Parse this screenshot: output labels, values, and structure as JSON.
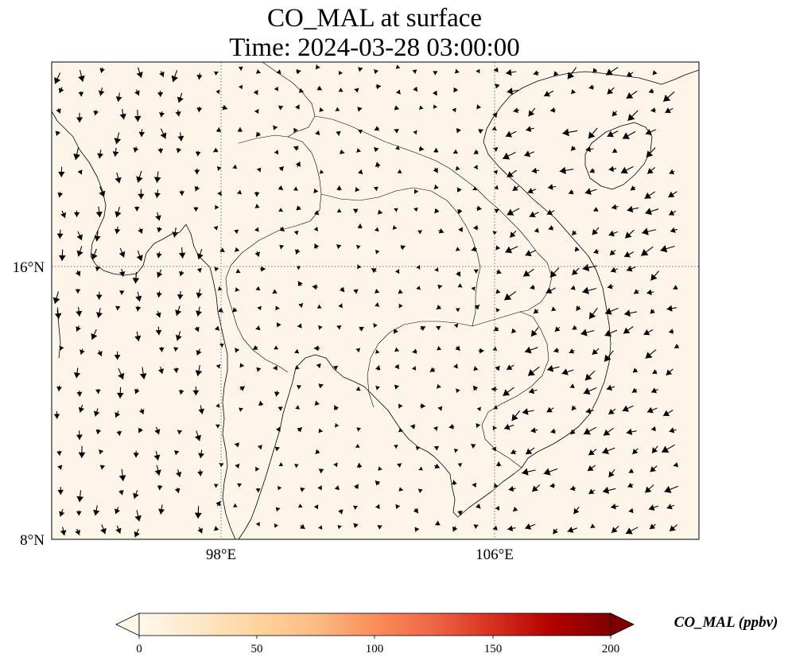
{
  "title": {
    "line1": "CO_MAL at surface",
    "line2": "Time: 2024-03-28 03:00:00"
  },
  "map": {
    "background_color": "#fdf5ea",
    "longitude_ticks": [
      "98°E",
      "106°E"
    ],
    "latitude_ticks": [
      "16°N",
      "8°N"
    ],
    "gridlines": "dotted",
    "features": [
      "coastlines",
      "country-borders",
      "wind-vectors"
    ]
  },
  "colorbar": {
    "label": "CO_MAL (ppbv)",
    "ticks": [
      "0",
      "50",
      "100",
      "150",
      "200"
    ],
    "min": 0,
    "max": 200,
    "extend": "both",
    "colormap": "OrRd",
    "colors": [
      "#fff7ec",
      "#fee8c8",
      "#fdd49e",
      "#fdbb84",
      "#fc8d59",
      "#ef6548",
      "#d7301f",
      "#b30000",
      "#7f0000"
    ]
  }
}
